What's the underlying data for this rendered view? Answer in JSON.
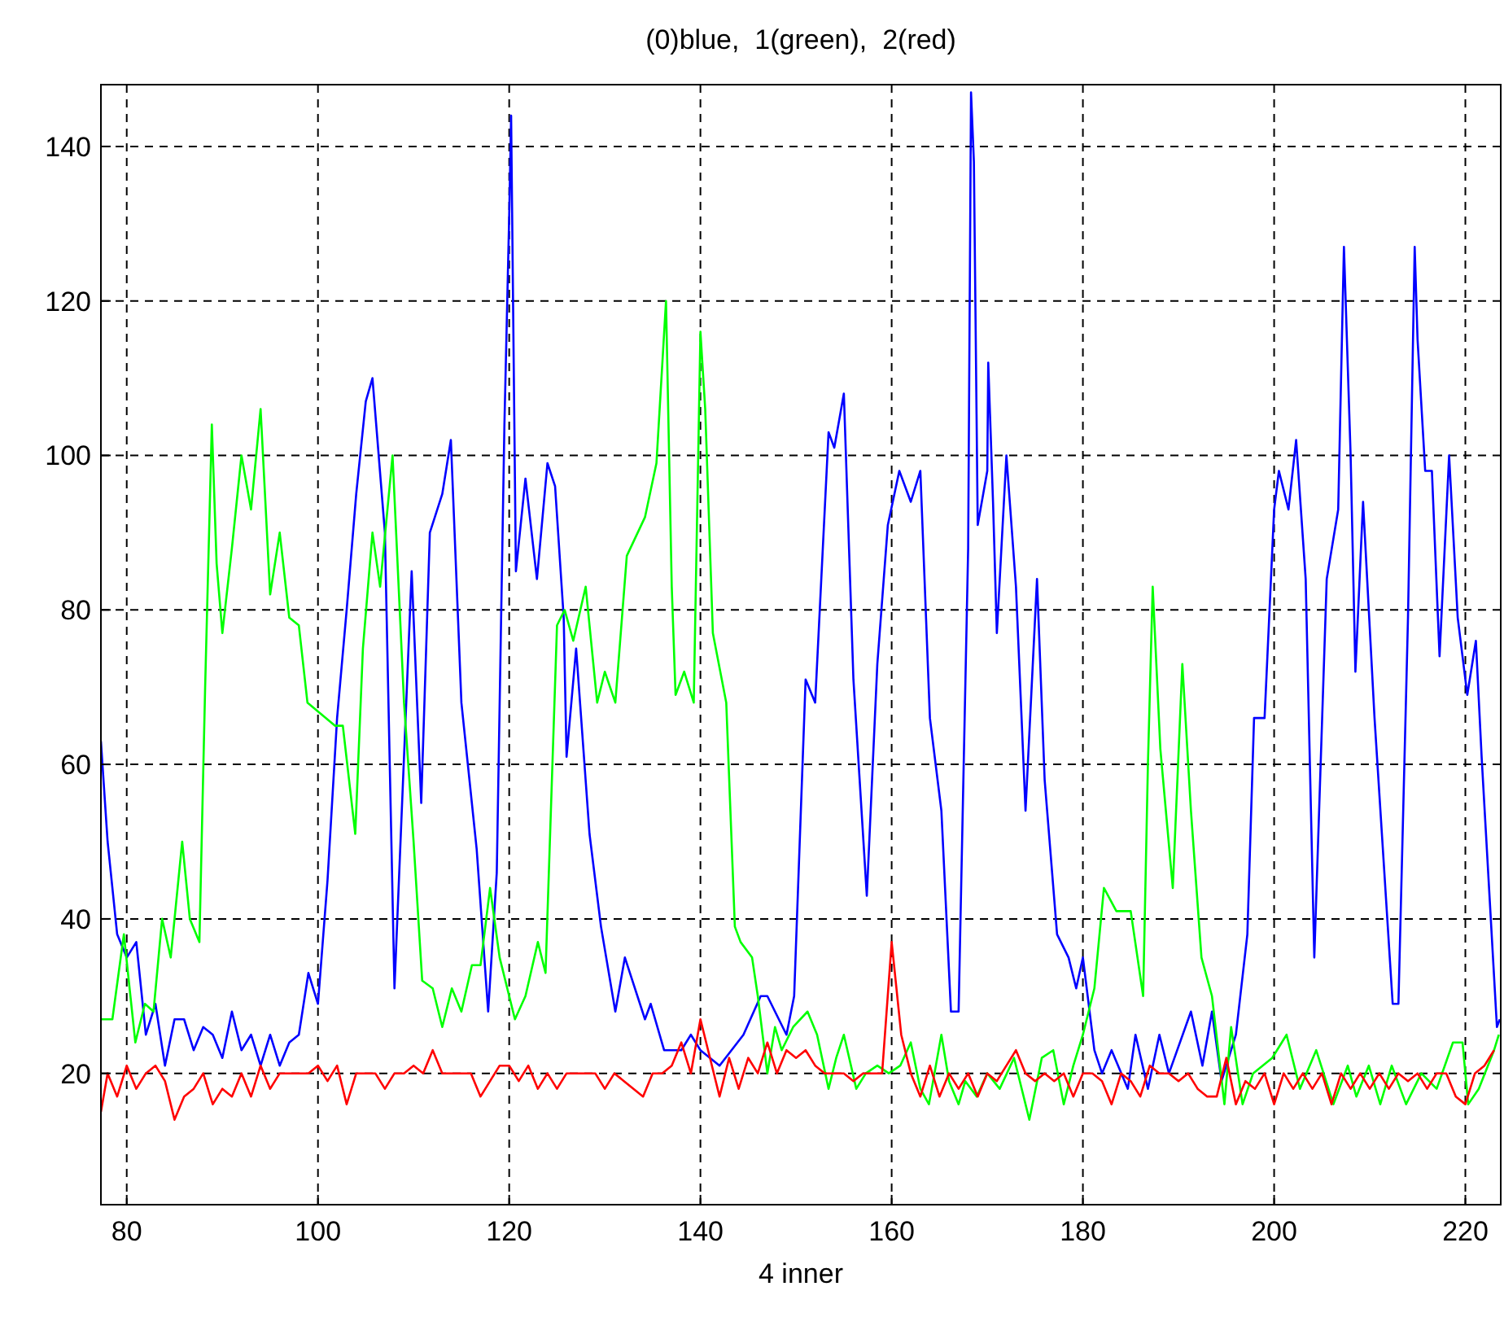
{
  "chart_data": {
    "type": "line",
    "title": "(0)blue,  1(green),  2(red)",
    "xlabel": "4 inner",
    "xlim": [
      77.3,
      223.7
    ],
    "ylim": [
      3,
      148
    ],
    "xticks": [
      80,
      100,
      120,
      140,
      160,
      180,
      200,
      220
    ],
    "yticks": [
      20,
      40,
      60,
      80,
      100,
      120,
      140
    ],
    "grid": true,
    "marker": "none",
    "line_style": "solid",
    "series": [
      {
        "color": "#0000ff",
        "x": [
          77.3,
          78,
          79,
          80,
          81,
          82,
          83,
          84,
          85,
          86,
          87,
          88,
          89,
          90,
          91,
          92,
          93,
          94,
          95,
          96,
          97,
          98,
          99,
          100,
          101,
          102,
          103,
          104,
          105,
          105.7,
          107,
          108,
          109.8,
          110.8,
          111.7,
          113,
          113.9,
          115,
          116.6,
          117.8,
          118.7,
          119.5,
          120,
          120.2,
          120.7,
          121.7,
          122.9,
          124,
          124.8,
          125.7,
          126,
          127,
          128.4,
          129.6,
          131.1,
          132.1,
          134.2,
          134.8,
          136.2,
          138,
          139,
          140,
          142,
          144.5,
          146.3,
          147,
          149,
          149.8,
          151,
          152,
          153.4,
          154,
          155,
          156,
          157.4,
          158.5,
          159.6,
          160.8,
          162,
          163,
          164,
          165.2,
          166.2,
          167,
          168,
          168.3,
          168.6,
          169,
          170,
          170.1,
          170.6,
          171,
          172,
          173,
          174,
          175.2,
          176,
          177.3,
          178.5,
          179.3,
          180,
          181.2,
          182,
          183,
          184.7,
          185.5,
          186.8,
          188,
          189,
          191.3,
          192.5,
          193.5,
          194.5,
          196,
          197.2,
          197.9,
          199,
          200,
          200.5,
          201.5,
          202.3,
          203.3,
          204.2,
          205.5,
          206.7,
          207.3,
          208,
          208.5,
          209.3,
          210.5,
          212.4,
          213,
          214,
          214.7,
          215,
          215.8,
          216.5,
          217.3,
          218.3,
          219.2,
          220.2,
          221.1,
          221.7,
          223.3,
          223.6
        ],
        "values": [
          63,
          50,
          38,
          35,
          37,
          25,
          29,
          21,
          27,
          27,
          23,
          26,
          25,
          22,
          28,
          23,
          25,
          21,
          25,
          21,
          24,
          25,
          33,
          29,
          45,
          66,
          80,
          95,
          107,
          110,
          90,
          31,
          85,
          55,
          90,
          95,
          102,
          68,
          49,
          28,
          46,
          104,
          131,
          144,
          85,
          97,
          84,
          99,
          96,
          79,
          61,
          75,
          51,
          39,
          28,
          35,
          27,
          29,
          23,
          23,
          25,
          23,
          21,
          25,
          30,
          30,
          25,
          30,
          71,
          68,
          103,
          101,
          108,
          71,
          43,
          73,
          91,
          98,
          94,
          98,
          66,
          54,
          28,
          28,
          88,
          147,
          138,
          91,
          98,
          112,
          94,
          77,
          100,
          83,
          54,
          84,
          58,
          38,
          35,
          31,
          35,
          23,
          20,
          23,
          18,
          25,
          18,
          25,
          20,
          28,
          21,
          28,
          19,
          25,
          38,
          66,
          66,
          93,
          98,
          93,
          102,
          84,
          35,
          84,
          93,
          127,
          100,
          72,
          94,
          66,
          29,
          29,
          79,
          127,
          115,
          98,
          98,
          74,
          100,
          79,
          69,
          76,
          61,
          26,
          27
        ]
      },
      {
        "color": "#00ff00",
        "x": [
          77.3,
          78.5,
          79.7,
          80.9,
          81.9,
          82.8,
          83.7,
          84.6,
          85.8,
          86.6,
          87.6,
          88.2,
          88.9,
          89.4,
          90,
          91,
          92,
          93,
          94,
          95,
          96,
          97,
          98,
          98.9,
          101.8,
          102.6,
          103.9,
          104.7,
          105.7,
          106.5,
          107.8,
          109,
          110,
          110.9,
          112,
          113,
          114,
          115,
          116.1,
          117,
          118,
          119,
          120.6,
          121.7,
          123,
          123.8,
          125,
          125.8,
          126.7,
          128,
          129.2,
          130,
          131.1,
          132.3,
          134.2,
          135.4,
          136.4,
          137,
          137.4,
          138.3,
          139.3,
          140,
          140.5,
          141.3,
          142.7,
          143.6,
          144.2,
          145.4,
          146,
          147,
          147.8,
          148.5,
          149.7,
          151.2,
          152.2,
          153.4,
          154.2,
          155,
          156.3,
          157.3,
          158.5,
          159.7,
          160.9,
          162,
          163,
          163.9,
          165.2,
          166,
          167,
          167.7,
          168.9,
          170,
          171.3,
          172.8,
          174.4,
          175.7,
          176.9,
          178,
          179,
          180,
          181.2,
          182.2,
          183.5,
          185,
          186.3,
          186.8,
          187.3,
          188.1,
          189.4,
          190.4,
          191.3,
          192.4,
          193.5,
          194.8,
          195.5,
          196.7,
          197.8,
          199.8,
          201.3,
          202.7,
          204.4,
          206.2,
          207.7,
          208.6,
          209.9,
          211.1,
          212.3,
          213.8,
          215.4,
          217,
          218.7,
          219.7,
          220.3,
          221.4,
          223,
          223.5
        ],
        "values": [
          27,
          27,
          38,
          24,
          29,
          28,
          40,
          35,
          50,
          40,
          37,
          70,
          104,
          86,
          77,
          88,
          100,
          93,
          106,
          82,
          90,
          79,
          78,
          68,
          65,
          65,
          51,
          75,
          90,
          83,
          100,
          68,
          50,
          32,
          31,
          26,
          31,
          28,
          34,
          34,
          44,
          35,
          27,
          30,
          37,
          33,
          78,
          80,
          76,
          83,
          68,
          72,
          68,
          87,
          92,
          99,
          120,
          83,
          69,
          72,
          68,
          116,
          106,
          77,
          68,
          39,
          37,
          35,
          30,
          20,
          26,
          23,
          26,
          28,
          25,
          18,
          22,
          25,
          18,
          20,
          21,
          20,
          21,
          24,
          18,
          16,
          25,
          19,
          16,
          19,
          17,
          20,
          18,
          22,
          14,
          22,
          23,
          16,
          21,
          25,
          31,
          44,
          41,
          41,
          30,
          60,
          83,
          62,
          44,
          73,
          54,
          35,
          30,
          16,
          26,
          16,
          20,
          22,
          25,
          18,
          23,
          16,
          21,
          17,
          21,
          16,
          21,
          16,
          20,
          18,
          24,
          24,
          16,
          18,
          23,
          25
        ]
      },
      {
        "color": "#ff0000",
        "x": [
          77.3,
          78,
          79,
          80,
          81,
          82,
          83,
          84,
          85,
          86,
          87,
          88,
          89,
          90,
          91,
          92,
          93,
          94,
          95,
          96,
          97,
          98,
          99,
          100,
          101,
          102,
          103,
          104,
          105,
          106,
          107,
          108,
          109,
          110,
          111,
          112,
          113,
          114,
          115,
          116,
          117,
          118,
          119,
          120,
          121,
          122,
          123,
          124,
          125,
          126,
          127,
          128,
          129,
          130,
          131,
          132,
          133,
          134,
          135,
          136,
          137,
          138,
          139,
          140,
          141,
          142,
          143,
          144,
          145,
          146,
          147,
          148,
          149,
          150,
          151,
          152,
          153,
          154,
          155,
          156,
          157,
          158,
          159,
          160,
          161,
          162,
          163,
          164,
          165,
          166,
          167,
          168,
          169,
          170,
          171,
          172,
          173,
          174,
          175,
          176,
          177,
          178,
          179,
          180,
          181,
          182,
          183,
          184,
          185,
          186,
          187,
          188,
          189,
          190,
          191,
          192,
          193,
          194,
          195,
          196,
          197,
          198,
          199,
          200,
          201,
          202,
          203,
          204,
          205,
          206,
          207,
          208,
          209,
          210,
          211,
          212,
          213,
          214,
          215,
          216,
          217,
          218,
          219,
          220,
          221,
          222,
          223
        ],
        "values": [
          15,
          20,
          17,
          21,
          18,
          20,
          21,
          19,
          14,
          17,
          18,
          20,
          16,
          18,
          17,
          20,
          17,
          21,
          18,
          20,
          20,
          20,
          20,
          21,
          19,
          21,
          16,
          20,
          20,
          20,
          18,
          20,
          20,
          21,
          20,
          23,
          20,
          20,
          20,
          20,
          17,
          19,
          21,
          21,
          19,
          21,
          18,
          20,
          18,
          20,
          20,
          20,
          20,
          18,
          20,
          19,
          18,
          17,
          20,
          20,
          21,
          24,
          20,
          27,
          22,
          17,
          22,
          18,
          22,
          20,
          24,
          20,
          23,
          22,
          23,
          21,
          20,
          20,
          20,
          19,
          20,
          20,
          20,
          37,
          25,
          20,
          17,
          21,
          17,
          20,
          18,
          20,
          17,
          20,
          19,
          21,
          23,
          20,
          19,
          20,
          19,
          20,
          17,
          20,
          20,
          19,
          16,
          20,
          19,
          17,
          21,
          20,
          20,
          19,
          20,
          18,
          17,
          17,
          22,
          16,
          19,
          18,
          20,
          16,
          20,
          18,
          20,
          18,
          20,
          16,
          20,
          18,
          20,
          18,
          20,
          18,
          20,
          19,
          20,
          18,
          20,
          20,
          17,
          16,
          20,
          21,
          23
        ]
      }
    ]
  }
}
